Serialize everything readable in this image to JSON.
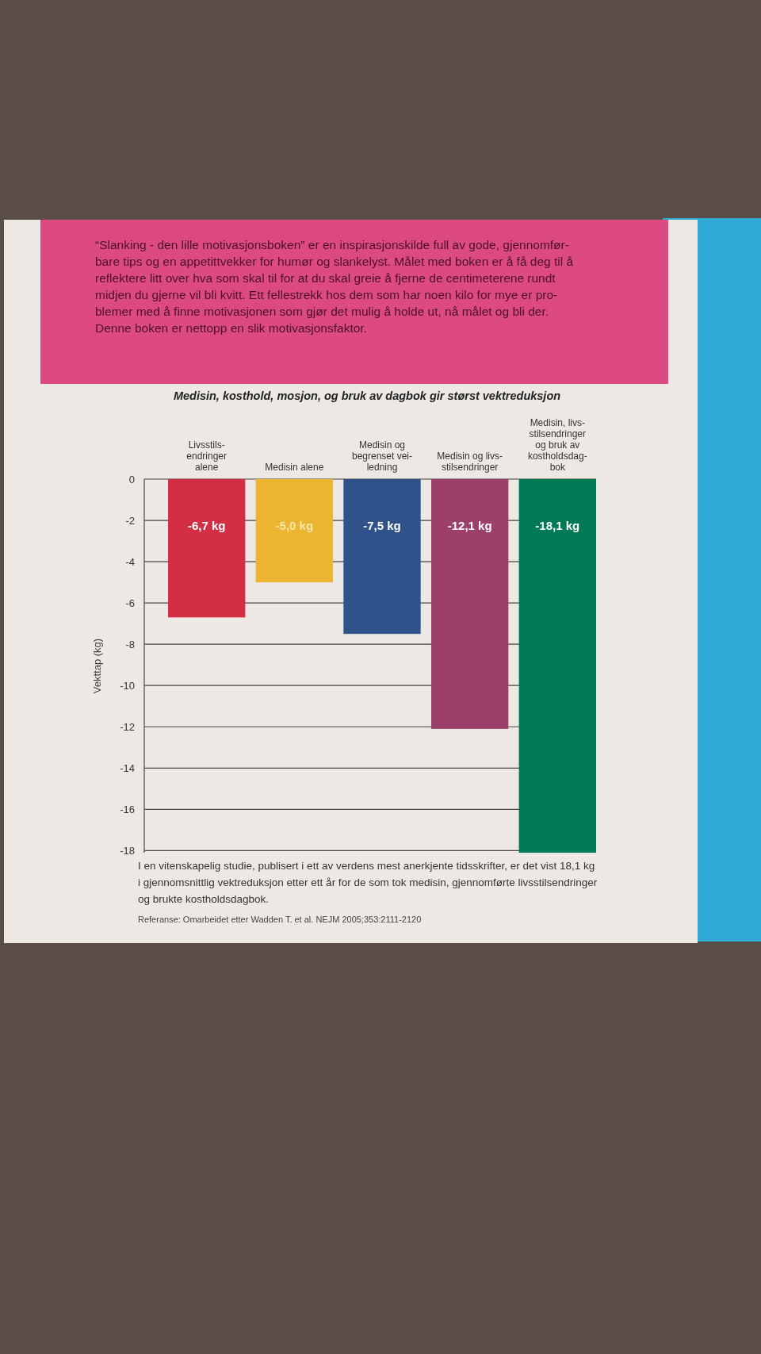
{
  "chart_data": {
    "type": "bar",
    "title": "Medisin, kosthold, mosjon, og bruk av dagbok gir størst vektreduksjon",
    "ylabel": "Vekttap (kg)",
    "categories": [
      "Livsstils-\nendringer\nalene",
      "Medisin alene",
      "Medisin og\nbegrenset vei-\nledning",
      "Medisin og livs-\nstilsendringer",
      "Medisin, livs-\nstilsendringer\nog bruk av\nkostholdsdag-\nbok"
    ],
    "values": [
      -6.7,
      -5.0,
      -7.5,
      -12.1,
      -18.1
    ],
    "colors": [
      "#d42e45",
      "#ecb531",
      "#2f528a",
      "#9c3f6a",
      "#007a55"
    ],
    "value_labels": [
      "-6,7 kg",
      "-5,0 kg",
      "-7,5 kg",
      "-12,1 kg",
      "-18,1 kg"
    ],
    "ylim": [
      -18.1,
      0
    ],
    "yticks": [
      0,
      -2,
      -4,
      -6,
      -8,
      -10,
      -12,
      -14,
      -16,
      -18
    ],
    "grid": "y",
    "annotations": [
      "“Slanking - den lille motivasjonsboken” er en inspirasjonskilde full av gode, gjennomfør-\nbare tips og en appetittvekker for humør og slankelyst. Målet med boken er å få deg til å\nreflektere litt over hva som skal til for at du skal greie å fjerne de centimeterene rundt\nmidjen du gjerne vil bli kvitt. Ett fellestrekk hos dem som har noen kilo for mye er pro-\nblemer med å finne motivasjonen som gjør det mulig å holde ut, nå målet og bli der.\nDenne boken er nettopp en slik motivasjonsfaktor.",
      "I en vitenskapelig studie, publisert i ett av verdens mest anerkjente tidsskrifter, er det vist 18,1 kg\ni gjennomsnittlig vektreduksjon etter ett år for de som tok medisin, gjennomførte livsstilsendringer\nog brukte kostholdsdagbok.",
      "Referanse: Omarbeidet etter Wadden T. et al. NEJM 2005;353:2111-2120"
    ]
  }
}
